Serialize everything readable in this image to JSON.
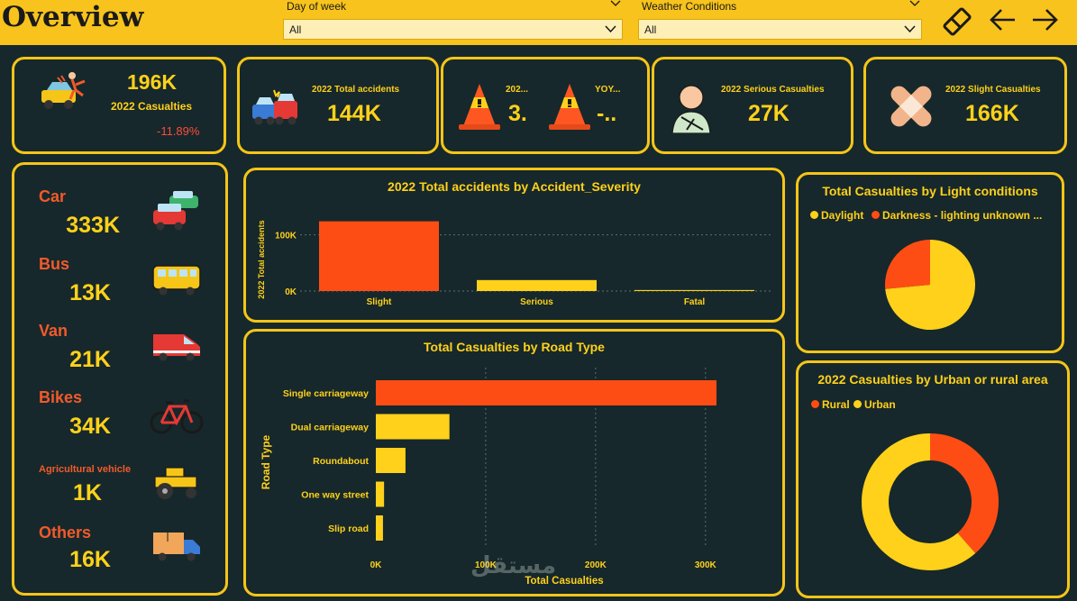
{
  "header": {
    "title": "Overview",
    "slicers": [
      {
        "label": "Day of week",
        "value": "All"
      },
      {
        "label": "Weather Conditions",
        "value": "All"
      }
    ]
  },
  "kpis": {
    "casualties": {
      "value": "196K",
      "label": "2022 Casualties",
      "change": "-11.89%"
    },
    "accidents": {
      "label": "2022 Total accidents",
      "value": "144K"
    },
    "cone1": {
      "label": "202...",
      "value": "3."
    },
    "cone2": {
      "label": "YOY...",
      "value": "-.."
    },
    "serious": {
      "label": "2022 Serious Casualties",
      "value": "27K"
    },
    "slight": {
      "label": "2022 Slight Casualties",
      "value": "166K"
    }
  },
  "vehicles": [
    {
      "name": "Car",
      "value": "333K"
    },
    {
      "name": "Bus",
      "value": "13K"
    },
    {
      "name": "Van",
      "value": "21K"
    },
    {
      "name": "Bikes",
      "value": "34K"
    },
    {
      "name": "Agricultural vehicle",
      "value": "1K"
    },
    {
      "name": "Others",
      "value": "16K"
    }
  ],
  "colors": {
    "accent": "#f5c518",
    "primary": "#fe4d14",
    "secondary": "#ffd11a",
    "background": "#16282b"
  },
  "chart_data": [
    {
      "type": "bar",
      "title": "2022 Total accidents by Accident_Severity",
      "categories": [
        "Slight",
        "Serious",
        "Fatal"
      ],
      "values": [
        124000,
        19500,
        1800
      ],
      "ylabel": "2022 Total accidents",
      "xlabel": "",
      "yticks": [
        "0K",
        "100K"
      ],
      "ylim": [
        0,
        125000
      ]
    },
    {
      "type": "bar",
      "orientation": "horizontal",
      "title": "Total Casualties by Road Type",
      "categories": [
        "Single carriageway",
        "Dual carriageway",
        "Roundabout",
        "One way street",
        "Slip road"
      ],
      "values": [
        310000,
        67000,
        27000,
        7500,
        6500
      ],
      "xlabel": "Total Casualties",
      "ylabel": "Road Type",
      "xticks": [
        "0K",
        "100K",
        "200K",
        "300K"
      ],
      "xlim": [
        0,
        310000
      ]
    },
    {
      "type": "pie",
      "title": "Total Casualties by Light conditions",
      "legend": [
        "Daylight",
        "Darkness - lighting unknown ..."
      ],
      "series": [
        {
          "name": "Daylight",
          "value": 73.5
        },
        {
          "name": "Darkness",
          "value": 26.5
        }
      ]
    },
    {
      "type": "pie",
      "subtype": "donut",
      "title": "2022 Casualties by Urban or rural area",
      "legend": [
        "Rural",
        "Urban"
      ],
      "series": [
        {
          "name": "Rural",
          "value": 38.5
        },
        {
          "name": "Urban",
          "value": 61.5
        }
      ]
    }
  ],
  "watermark": "مستقل"
}
